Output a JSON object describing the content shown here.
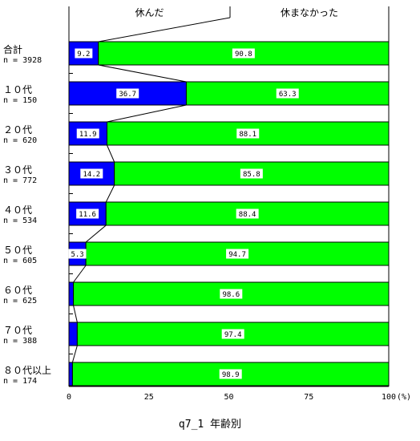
{
  "chart_data": {
    "type": "bar",
    "stacked": true,
    "orientation": "horizontal",
    "title": "",
    "caption": "q7_1 年齢別",
    "unit": "(%)",
    "xlim": [
      0,
      100
    ],
    "x_ticks": [
      "0",
      "25",
      "50",
      "75",
      "100"
    ],
    "categories": [
      {
        "name": "合計",
        "n": "n = 3928"
      },
      {
        "name": "１０代",
        "n": "n = 150"
      },
      {
        "name": "２０代",
        "n": "n = 620"
      },
      {
        "name": "３０代",
        "n": "n = 772"
      },
      {
        "name": "４０代",
        "n": "n = 534"
      },
      {
        "name": "５０代",
        "n": "n = 605"
      },
      {
        "name": "６０代",
        "n": "n = 625"
      },
      {
        "name": "７０代",
        "n": "n = 388"
      },
      {
        "name": "８０代以上",
        "n": "n = 174"
      }
    ],
    "series": [
      {
        "name": "休んだ",
        "color": "#0000ff",
        "values": [
          9.2,
          36.7,
          11.9,
          14.2,
          11.6,
          5.3,
          1.4,
          2.6,
          1.1
        ],
        "labels": [
          "9.2",
          "36.7",
          "11.9",
          "14.2",
          "11.6",
          "5.3",
          "",
          "",
          ""
        ]
      },
      {
        "name": "休まなかった",
        "color": "#00ff00",
        "values": [
          90.8,
          63.3,
          88.1,
          85.8,
          88.4,
          94.7,
          98.6,
          97.4,
          98.9
        ],
        "labels": [
          "90.8",
          "63.3",
          "88.1",
          "85.8",
          "88.4",
          "94.7",
          "98.6",
          "97.4",
          "98.9"
        ]
      }
    ],
    "legend_placement": "top",
    "grid": false
  }
}
